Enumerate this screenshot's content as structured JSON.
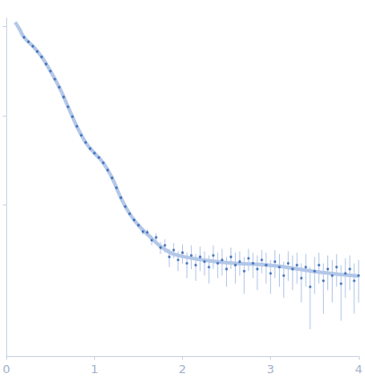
{
  "chart_data": {
    "type": "scatter",
    "x": [
      0.2,
      0.25,
      0.3,
      0.35,
      0.4,
      0.45,
      0.5,
      0.55,
      0.6,
      0.65,
      0.7,
      0.75,
      0.8,
      0.85,
      0.9,
      0.95,
      1.0,
      1.05,
      1.1,
      1.15,
      1.2,
      1.25,
      1.3,
      1.35,
      1.4,
      1.45,
      1.5,
      1.55,
      1.6,
      1.65,
      1.7,
      1.75,
      1.8,
      1.85,
      1.9,
      1.95,
      2.0,
      2.05,
      2.1,
      2.15,
      2.2,
      2.25,
      2.3,
      2.35,
      2.4,
      2.45,
      2.5,
      2.55,
      2.6,
      2.65,
      2.7,
      2.75,
      2.8,
      2.85,
      2.9,
      2.95,
      3.0,
      3.05,
      3.1,
      3.15,
      3.2,
      3.25,
      3.3,
      3.35,
      3.4,
      3.45,
      3.5,
      3.55,
      3.6,
      3.65,
      3.7,
      3.75,
      3.8,
      3.85,
      3.9,
      3.95,
      4.0
    ],
    "values": [
      0.759,
      0.676,
      0.603,
      0.525,
      0.457,
      0.38,
      0.316,
      0.257,
      0.209,
      0.162,
      0.126,
      0.0977,
      0.0759,
      0.0603,
      0.0501,
      0.0427,
      0.038,
      0.0339,
      0.0295,
      0.0245,
      0.02,
      0.0155,
      0.012,
      0.00955,
      0.00794,
      0.00676,
      0.00589,
      0.005,
      0.0049,
      0.004,
      0.0043,
      0.0033,
      0.0035,
      0.0026,
      0.0031,
      0.0024,
      0.0029,
      0.0022,
      0.0027,
      0.0021,
      0.0026,
      0.0023,
      0.002,
      0.0027,
      0.0022,
      0.0024,
      0.0019,
      0.0026,
      0.0021,
      0.0023,
      0.0018,
      0.0025,
      0.0022,
      0.0019,
      0.0024,
      0.0021,
      0.0017,
      0.0023,
      0.002,
      0.0016,
      0.0022,
      0.0019,
      0.0021,
      0.0015,
      0.002,
      0.0012,
      0.0018,
      0.0021,
      0.0014,
      0.0019,
      0.0016,
      0.002,
      0.0013,
      0.0017,
      0.0019,
      0.0014,
      0.0016
    ],
    "errors": [
      0.008,
      0.007,
      0.006,
      0.005,
      0.004,
      0.004,
      0.003,
      0.003,
      0.002,
      0.002,
      0.0015,
      0.0012,
      0.001,
      0.0008,
      0.0007,
      0.0006,
      0.0006,
      0.0005,
      0.0005,
      0.0004,
      0.0004,
      0.0003,
      0.0003,
      0.0003,
      0.0003,
      0.0003,
      0.0003,
      0.0004,
      0.0004,
      0.0005,
      0.0005,
      0.0005,
      0.0006,
      0.0006,
      0.0006,
      0.0006,
      0.0007,
      0.0007,
      0.0008,
      0.0007,
      0.0008,
      0.0007,
      0.0007,
      0.0008,
      0.0007,
      0.0008,
      0.0007,
      0.0007,
      0.0008,
      0.0007,
      0.0008,
      0.0007,
      0.0007,
      0.0008,
      0.0007,
      0.0008,
      0.0007,
      0.0008,
      0.0008,
      0.0007,
      0.0008,
      0.0008,
      0.0008,
      0.0007,
      0.0008,
      0.0008,
      0.0008,
      0.0008,
      0.0008,
      0.0008,
      0.0008,
      0.0008,
      0.0008,
      0.0008,
      0.0008,
      0.0008,
      0.0008
    ],
    "color": "#2b5fb3",
    "marker": "circle",
    "fit": {
      "type": "line",
      "x": [
        0.1,
        0.15,
        0.2,
        0.3,
        0.4,
        0.5,
        0.6,
        0.7,
        0.8,
        0.9,
        1.0,
        1.1,
        1.2,
        1.3,
        1.4,
        1.5,
        1.6,
        1.8,
        2.0,
        2.5,
        3.0,
        3.5,
        4.0
      ],
      "values": [
        1.12,
        0.933,
        0.759,
        0.603,
        0.457,
        0.316,
        0.209,
        0.126,
        0.0759,
        0.0501,
        0.038,
        0.0295,
        0.02,
        0.012,
        0.00794,
        0.00589,
        0.00468,
        0.00316,
        0.00263,
        0.00224,
        0.00209,
        0.00178,
        0.00158
      ],
      "color": "#b3c7e8",
      "line_style": "solid"
    },
    "xlim": [
      0,
      4
    ],
    "xticks": [
      0,
      1,
      2,
      3,
      4
    ],
    "ylim": [
      0.0002,
      1.25
    ],
    "yticks": [
      0.01,
      0.1,
      1
    ],
    "log": "y",
    "grid": false,
    "tick_labels": "x"
  }
}
